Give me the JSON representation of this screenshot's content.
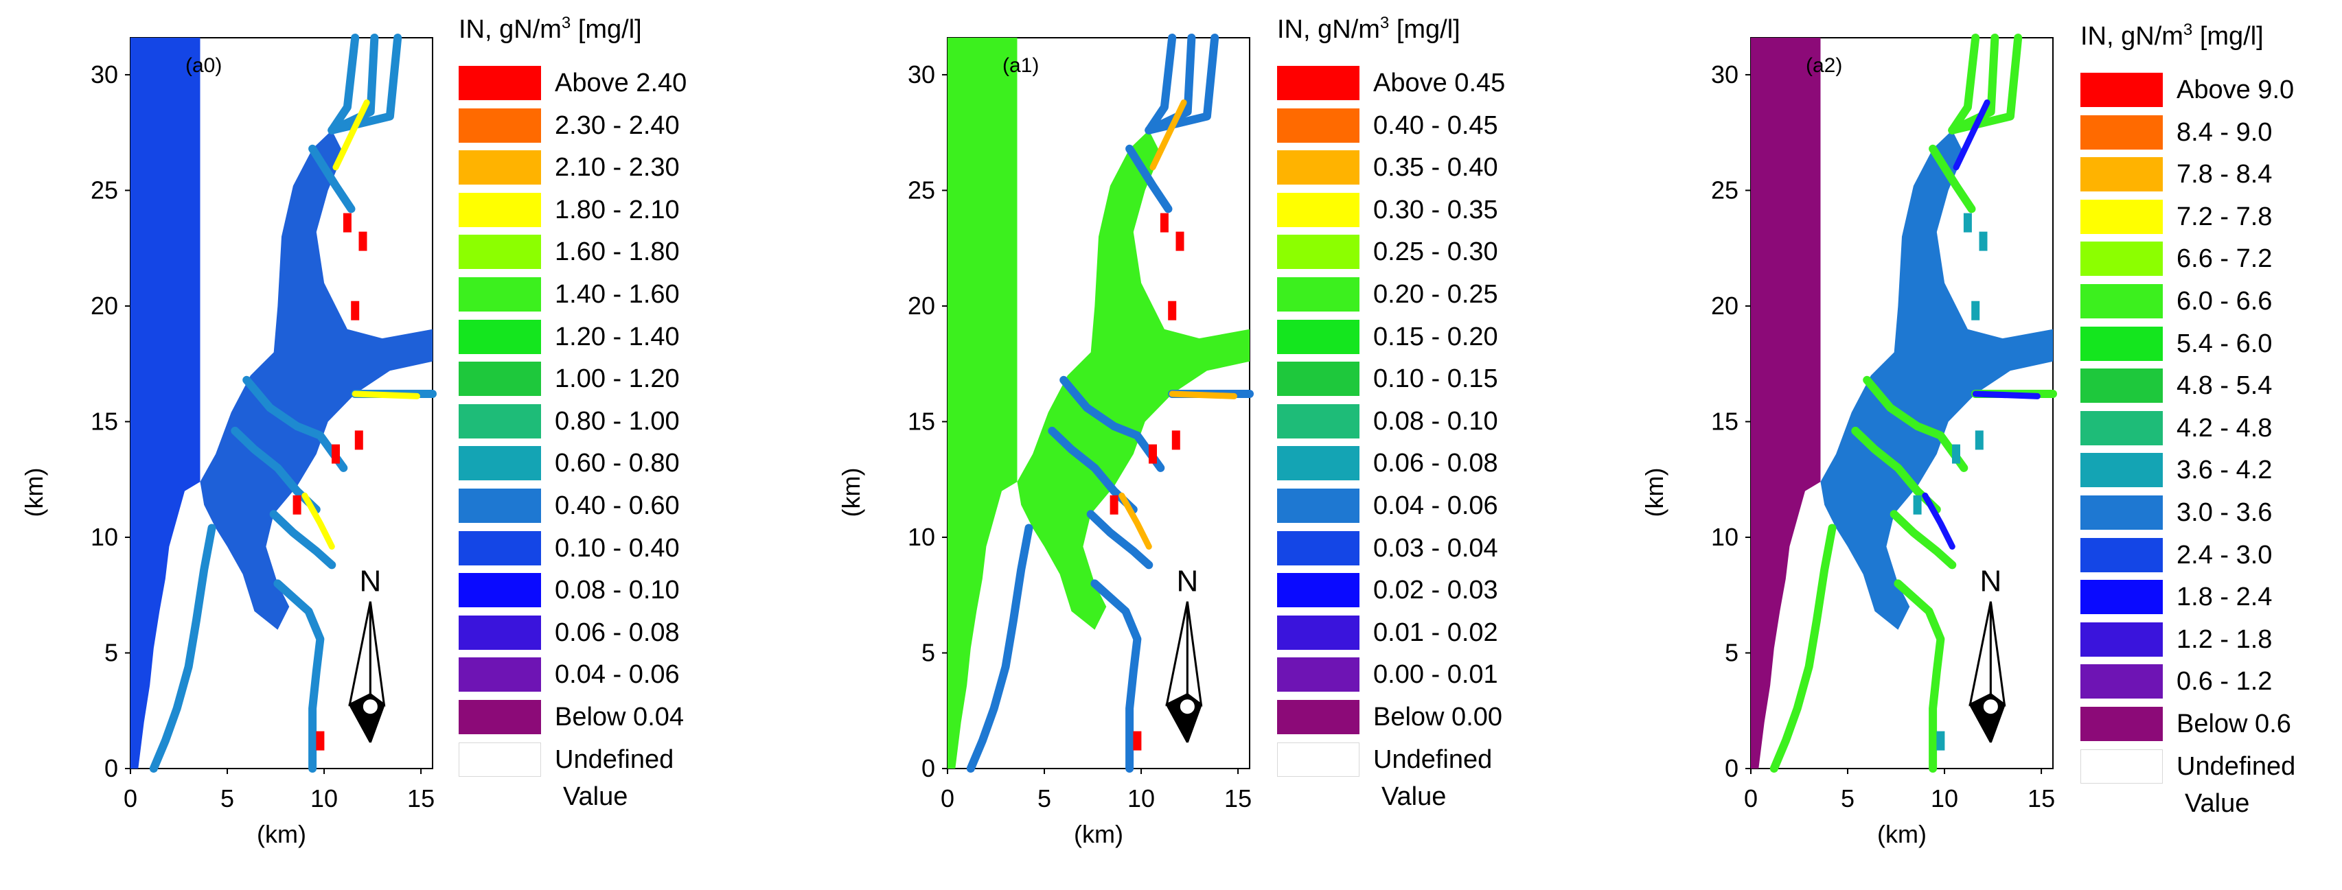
{
  "legend_title_main": "IN, gN/m",
  "legend_title_sup": "3",
  "legend_title_unit": "[mg/l]",
  "undefined_label_1": "Undefined",
  "undefined_label_2": "Value",
  "axis_unit": "(km)",
  "x_ticks": [
    "0",
    "5",
    "10",
    "15"
  ],
  "y_ticks": [
    "0",
    "5",
    "10",
    "15",
    "20",
    "25",
    "30"
  ],
  "north_label": "N",
  "legend_colors": [
    "#ff0000",
    "#ff6a00",
    "#ffb300",
    "#ffff00",
    "#8cff00",
    "#3cf01e",
    "#14e61e",
    "#1ec83c",
    "#1ebc78",
    "#14a4b4",
    "#1e78d2",
    "#1446e6",
    "#0a0aff",
    "#3a14dc",
    "#6e14b4",
    "#8c0a78"
  ],
  "panels": [
    {
      "label": "(a0)",
      "legend": [
        "Above 2.40",
        "2.30 - 2.40",
        "2.10 - 2.30",
        "1.80 - 2.10",
        "1.60 - 1.80",
        "1.40 - 1.60",
        "1.20 - 1.40",
        "1.00 - 1.20",
        "0.80 - 1.00",
        "0.60 - 0.80",
        "0.40 - 0.60",
        "0.10 - 0.40",
        "0.08 - 0.10",
        "0.06 - 0.08",
        "0.04 - 0.06",
        "Below 0.04"
      ],
      "sea_color": "#1446e6",
      "estuary_color": "#1e60d8",
      "mid_color": "#1e8ad0",
      "hot_color": "#ffff00",
      "spot_color": "#ff0000",
      "y_ticks_visible": [
        "0",
        "5",
        "10",
        "15",
        "20",
        "25",
        "30"
      ]
    },
    {
      "label": "(a1)",
      "legend": [
        "Above 0.45",
        "0.40 - 0.45",
        "0.35 - 0.40",
        "0.30 - 0.35",
        "0.25 - 0.30",
        "0.20 - 0.25",
        "0.15 - 0.20",
        "0.10 - 0.15",
        "0.08 - 0.10",
        "0.06 - 0.08",
        "0.04 - 0.06",
        "0.03 - 0.04",
        "0.02 - 0.03",
        "0.01 - 0.02",
        "0.00 - 0.01",
        "Below 0.00"
      ],
      "sea_color": "#3cf01e",
      "estuary_color": "#3cf01e",
      "mid_color": "#1e78d2",
      "hot_color": "#ffb300",
      "spot_color": "#ff0000",
      "y_ticks_visible": [
        "0",
        "5",
        "10",
        "15",
        "20",
        "25",
        "30"
      ]
    },
    {
      "label": "(a2)",
      "legend": [
        "Above 9.0",
        "8.4 - 9.0",
        "7.8 - 8.4",
        "7.2 - 7.8",
        "6.6 - 7.2",
        "6.0 - 6.6",
        "5.4 - 6.0",
        "4.8 - 5.4",
        "4.2 - 4.8",
        "3.6 - 4.2",
        "3.0 - 3.6",
        "2.4 - 3.0",
        "1.8 - 2.4",
        "1.2 - 1.8",
        "0.6 - 1.2",
        "Below 0.6"
      ],
      "sea_color": "#8c0a78",
      "estuary_color": "#1e78d2",
      "mid_color": "#3cf01e",
      "hot_color": "#1414ff",
      "spot_color": "#14a4b4",
      "y_ticks_visible": [
        "0",
        "5",
        "10",
        "15",
        "20",
        "25",
        "30"
      ]
    }
  ]
}
